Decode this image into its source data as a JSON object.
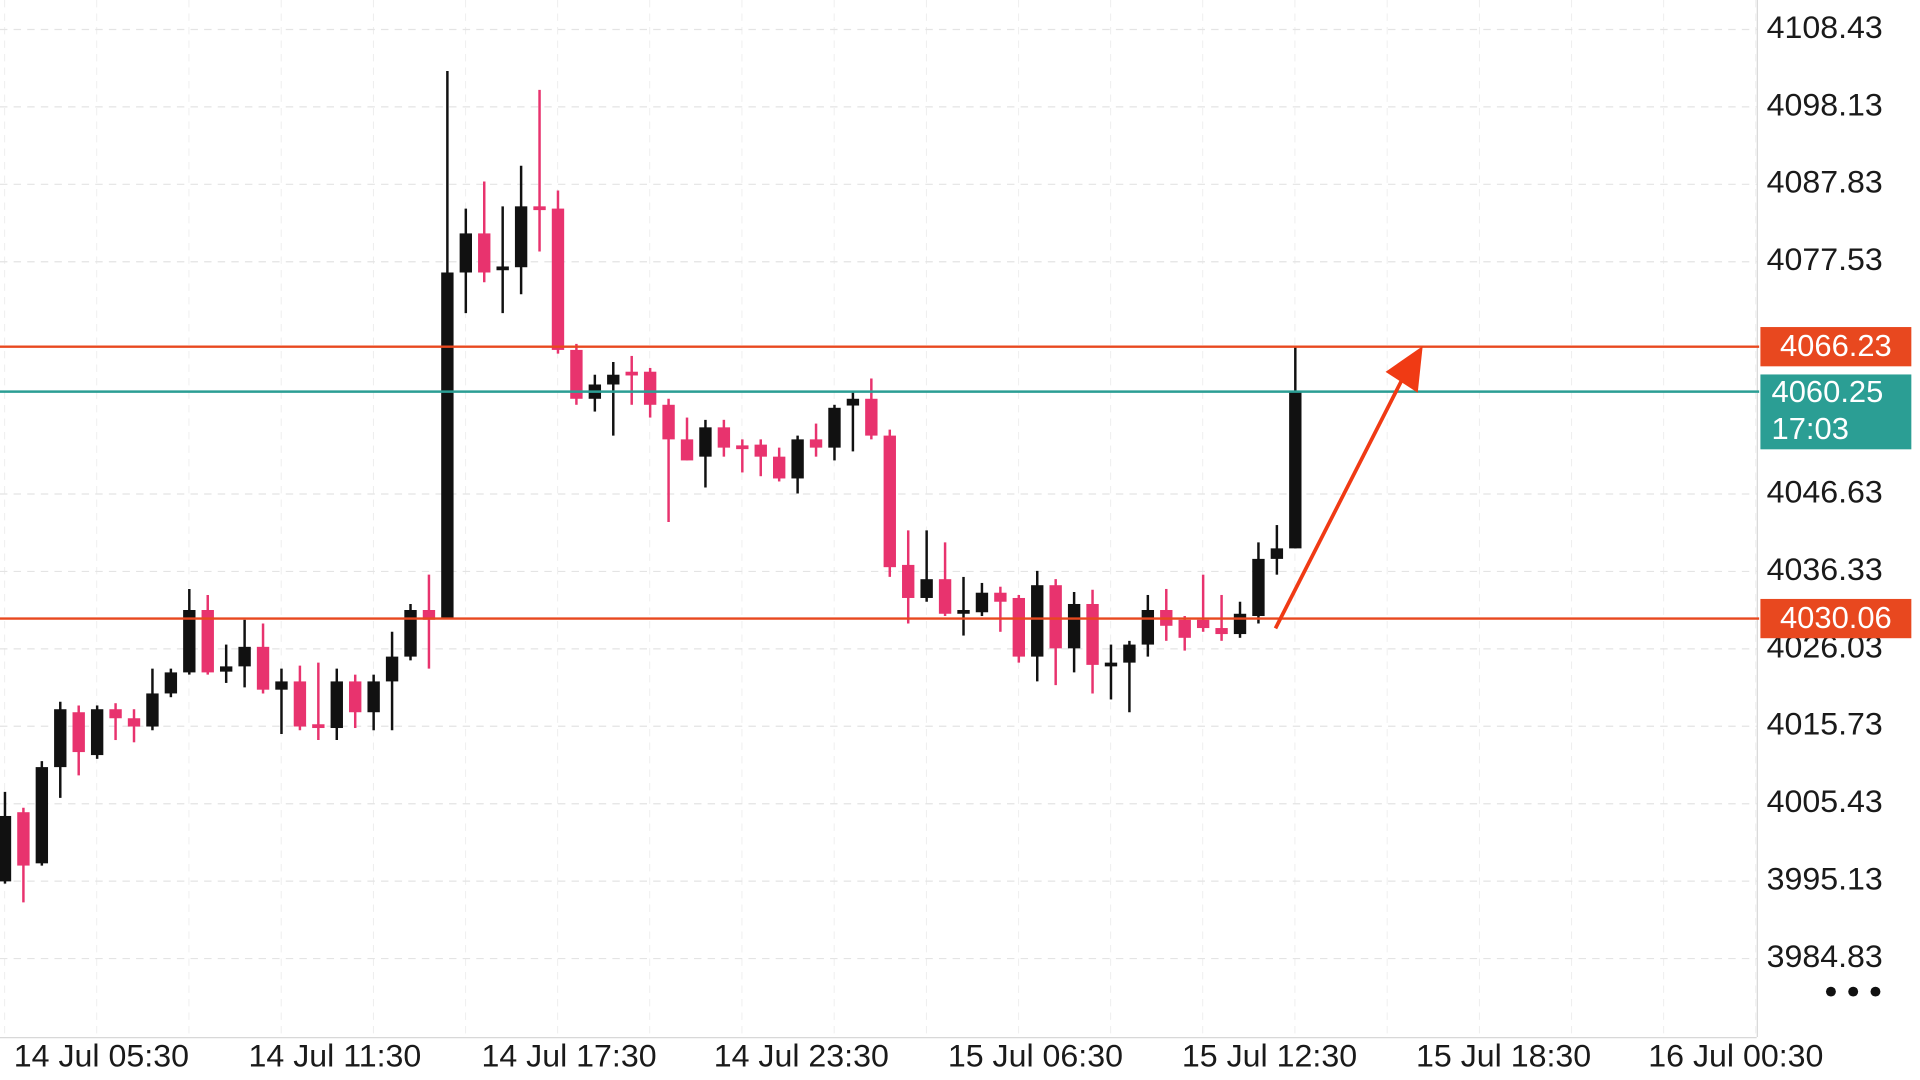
{
  "chart_data": {
    "type": "candlestick",
    "open": [
      3995.1,
      4004.3,
      3997.5,
      4010.3,
      4017.6,
      4011.9,
      4018.0,
      4016.8,
      4015.7,
      4020.1,
      4022.9,
      4031.2,
      4023.0,
      4023.7,
      4026.3,
      4020.6,
      4021.7,
      4016.0,
      4015.5,
      4021.7,
      4017.6,
      4021.7,
      4025.0,
      4031.2,
      4030.2,
      4076.1,
      4081.3,
      4076.4,
      4076.8,
      4084.9,
      4084.6,
      4065.8,
      4059.3,
      4061.2,
      4062.9,
      4062.9,
      4058.5,
      4053.9,
      4051.6,
      4055.5,
      4053.1,
      4053.2,
      4051.6,
      4048.7,
      4053.9,
      4052.8,
      4058.4,
      4059.3,
      4054.4,
      4037.2,
      4032.8,
      4035.3,
      4030.7,
      4030.9,
      4033.5,
      4032.8,
      4025.0,
      4034.5,
      4026.1,
      4032.0,
      4023.7,
      4024.2,
      4026.6,
      4031.2,
      4029.9,
      4029.9,
      4028.8,
      4028.0,
      4030.4,
      4038.0,
      4039.4
    ],
    "high": [
      4007.0,
      4004.9,
      4011.1,
      4019.0,
      4018.5,
      4018.5,
      4018.8,
      4018.0,
      4023.4,
      4023.4,
      4034.0,
      4033.2,
      4026.6,
      4029.9,
      4029.4,
      4023.4,
      4023.8,
      4024.2,
      4023.4,
      4022.6,
      4022.6,
      4028.3,
      4032.0,
      4035.9,
      4102.9,
      4084.6,
      4088.2,
      4084.9,
      4090.3,
      4100.4,
      4087.0,
      4066.6,
      4062.5,
      4064.2,
      4065.0,
      4063.4,
      4059.3,
      4056.8,
      4056.5,
      4056.5,
      4053.9,
      4053.9,
      4052.8,
      4054.4,
      4056.0,
      4058.5,
      4060.4,
      4062.0,
      4055.2,
      4041.8,
      4041.8,
      4040.2,
      4035.6,
      4034.8,
      4034.3,
      4033.2,
      4036.4,
      4035.3,
      4033.6,
      4033.9,
      4026.6,
      4027.1,
      4033.2,
      4034.0,
      4030.4,
      4035.9,
      4033.2,
      4032.3,
      4040.2,
      4042.5,
      4066.2
    ],
    "low": [
      3994.8,
      3992.3,
      3997.2,
      4006.2,
      4009.2,
      4011.4,
      4013.9,
      4013.6,
      4015.2,
      4019.6,
      4022.6,
      4022.6,
      4021.5,
      4020.9,
      4020.1,
      4014.7,
      4015.2,
      4013.9,
      4013.9,
      4015.5,
      4015.2,
      4015.2,
      4024.5,
      4023.4,
      4030.2,
      4070.7,
      4074.8,
      4070.7,
      4073.2,
      4078.9,
      4065.3,
      4058.5,
      4057.6,
      4054.4,
      4058.5,
      4056.8,
      4042.9,
      4051.1,
      4047.5,
      4051.6,
      4049.5,
      4049.0,
      4048.3,
      4046.7,
      4051.6,
      4051.1,
      4052.3,
      4053.9,
      4035.6,
      4029.4,
      4032.3,
      4030.4,
      4027.8,
      4030.4,
      4028.3,
      4024.2,
      4021.7,
      4021.2,
      4022.9,
      4020.1,
      4019.3,
      4017.6,
      4025.0,
      4027.1,
      4025.8,
      4028.3,
      4027.1,
      4027.5,
      4029.4,
      4035.9,
      4039.4
    ],
    "close": [
      4003.8,
      3997.2,
      4010.3,
      4018.0,
      4012.3,
      4018.0,
      4016.8,
      4015.7,
      4020.1,
      4022.9,
      4031.2,
      4022.9,
      4023.7,
      4026.3,
      4020.6,
      4021.7,
      4015.7,
      4015.5,
      4021.7,
      4017.6,
      4021.7,
      4025.0,
      4031.2,
      4029.9,
      4076.1,
      4081.3,
      4076.1,
      4076.9,
      4084.9,
      4084.4,
      4065.8,
      4059.3,
      4061.2,
      4062.5,
      4062.4,
      4058.5,
      4053.9,
      4051.1,
      4055.5,
      4052.8,
      4052.6,
      4051.6,
      4048.7,
      4053.9,
      4052.8,
      4058.1,
      4059.3,
      4054.4,
      4036.9,
      4032.8,
      4035.3,
      4030.7,
      4031.2,
      4033.5,
      4032.3,
      4025.0,
      4034.5,
      4026.1,
      4032.0,
      4023.9,
      4024.2,
      4026.6,
      4031.2,
      4029.1,
      4027.5,
      4028.8,
      4028.0,
      4030.7,
      4038.0,
      4039.4,
      4060.25
    ],
    "up_color": "#111111",
    "down_color": "#e8336e",
    "ylim": [
      3974.39,
      4112.35
    ],
    "yticks": [
      4108.43,
      4098.13,
      4087.83,
      4077.53,
      4046.63,
      4036.33,
      4026.03,
      4015.73,
      4005.43,
      3995.13,
      3984.83
    ],
    "xlim": [
      -0.27,
      95.03
    ],
    "xticks": [
      {
        "value": 5.23,
        "label": "14 Jul 05:30"
      },
      {
        "value": 17.9,
        "label": "14 Jul 11:30"
      },
      {
        "value": 30.6,
        "label": "14 Jul 17:30"
      },
      {
        "value": 43.2,
        "label": "14 Jul 23:30"
      },
      {
        "value": 55.9,
        "label": "15 Jul 06:30"
      },
      {
        "value": 68.6,
        "label": "15 Jul 12:30"
      },
      {
        "value": 81.3,
        "label": "15 Jul 18:30"
      },
      {
        "value": 93.9,
        "label": "16 Jul 00:30"
      }
    ],
    "grid": true,
    "levels": [
      {
        "value": 4066.23,
        "color": "#e8481f"
      },
      {
        "value": 4030.06,
        "color": "#e8481f"
      }
    ],
    "price_line": {
      "value": 4060.25,
      "countdown": "17:03",
      "color": "#2b9e94"
    }
  }
}
